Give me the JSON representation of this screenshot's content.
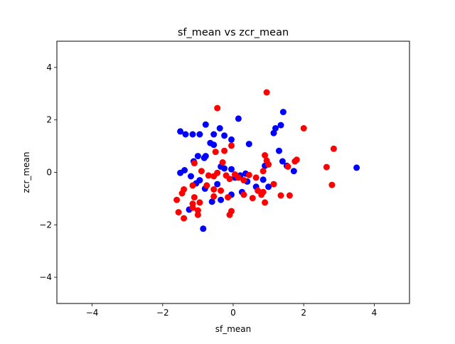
{
  "chart_data": {
    "type": "scatter",
    "title": "sf_mean vs zcr_mean",
    "xlabel": "sf_mean",
    "ylabel": "zcr_mean",
    "xlim": [
      -5,
      5
    ],
    "ylim": [
      -5,
      5
    ],
    "x_ticks": [
      -4,
      -2,
      0,
      2,
      4
    ],
    "y_ticks": [
      -4,
      -2,
      0,
      2,
      4
    ],
    "x_tick_labels": [
      "−4",
      "−2",
      "0",
      "2",
      "4"
    ],
    "y_tick_labels": [
      "−4",
      "−2",
      "0",
      "2",
      "4"
    ],
    "grid": false,
    "legend": "none",
    "series": [
      {
        "color": "#0000ff",
        "points": [
          [
            -1.5,
            1.56
          ],
          [
            -1.35,
            1.45
          ],
          [
            -1.15,
            1.45
          ],
          [
            -0.95,
            1.45
          ],
          [
            -0.78,
            1.82
          ],
          [
            -0.55,
            1.45
          ],
          [
            -0.38,
            1.68
          ],
          [
            -0.25,
            1.4
          ],
          [
            -0.05,
            1.25
          ],
          [
            0.15,
            2.05
          ],
          [
            0.45,
            1.08
          ],
          [
            -0.65,
            1.12
          ],
          [
            -0.55,
            1.05
          ],
          [
            -1.0,
            0.62
          ],
          [
            -0.78,
            0.62
          ],
          [
            -0.82,
            0.55
          ],
          [
            -1.12,
            0.42
          ],
          [
            -1.5,
            -0.02
          ],
          [
            -1.38,
            0.08
          ],
          [
            -1.2,
            -0.15
          ],
          [
            -0.35,
            0.22
          ],
          [
            -0.25,
            0.15
          ],
          [
            -0.05,
            0.12
          ],
          [
            0.2,
            -0.12
          ],
          [
            0.35,
            -0.05
          ],
          [
            0.4,
            -0.35
          ],
          [
            0.65,
            -0.55
          ],
          [
            0.85,
            -0.28
          ],
          [
            1.0,
            -0.55
          ],
          [
            1.15,
            1.5
          ],
          [
            1.2,
            1.68
          ],
          [
            1.35,
            1.8
          ],
          [
            1.42,
            2.3
          ],
          [
            1.3,
            0.82
          ],
          [
            1.4,
            0.42
          ],
          [
            1.52,
            0.25
          ],
          [
            1.72,
            0.05
          ],
          [
            0.9,
            0.25
          ],
          [
            -1.05,
            -0.42
          ],
          [
            -0.95,
            -0.3
          ],
          [
            -0.8,
            -0.62
          ],
          [
            -0.6,
            -1.12
          ],
          [
            -0.35,
            -1.05
          ],
          [
            -0.05,
            -0.85
          ],
          [
            0.25,
            -0.75
          ],
          [
            -1.25,
            -1.42
          ],
          [
            -0.85,
            -2.15
          ],
          [
            3.5,
            0.18
          ],
          [
            -0.45,
            -0.45
          ],
          [
            0.05,
            -0.2
          ]
        ]
      },
      {
        "color": "#ff0000",
        "points": [
          [
            -0.45,
            2.45
          ],
          [
            0.95,
            3.05
          ],
          [
            2.0,
            1.68
          ],
          [
            2.85,
            0.9
          ],
          [
            2.65,
            0.2
          ],
          [
            2.8,
            -0.48
          ],
          [
            1.75,
            0.42
          ],
          [
            1.8,
            0.48
          ],
          [
            1.55,
            0.22
          ],
          [
            1.0,
            0.3
          ],
          [
            0.9,
            0.65
          ],
          [
            0.95,
            0.45
          ],
          [
            0.85,
            0.05
          ],
          [
            -0.05,
            1.02
          ],
          [
            -0.25,
            0.82
          ],
          [
            -0.5,
            0.78
          ],
          [
            -0.3,
            0.38
          ],
          [
            -0.45,
            -0.02
          ],
          [
            -0.7,
            -0.12
          ],
          [
            -0.9,
            0.05
          ],
          [
            -1.1,
            0.35
          ],
          [
            -0.55,
            -0.15
          ],
          [
            -0.2,
            -0.12
          ],
          [
            -0.1,
            -0.25
          ],
          [
            0.05,
            -0.08
          ],
          [
            0.15,
            -0.2
          ],
          [
            0.3,
            -0.3
          ],
          [
            0.45,
            -0.1
          ],
          [
            0.65,
            -0.2
          ],
          [
            0.7,
            -0.7
          ],
          [
            0.8,
            -0.85
          ],
          [
            0.85,
            -0.75
          ],
          [
            1.15,
            -0.45
          ],
          [
            1.35,
            -0.88
          ],
          [
            1.6,
            -0.88
          ],
          [
            0.9,
            -1.15
          ],
          [
            0.3,
            -0.85
          ],
          [
            -0.15,
            -0.95
          ],
          [
            -0.35,
            -0.7
          ],
          [
            -0.55,
            -0.65
          ],
          [
            -0.75,
            -0.5
          ],
          [
            -1.15,
            -0.5
          ],
          [
            -1.4,
            -0.65
          ],
          [
            -1.45,
            -0.8
          ],
          [
            -1.6,
            -1.05
          ],
          [
            -1.1,
            -0.95
          ],
          [
            -1.15,
            -1.2
          ],
          [
            -1.15,
            -1.35
          ],
          [
            -0.95,
            -1.15
          ],
          [
            -1.0,
            -1.45
          ],
          [
            -1.0,
            -1.62
          ],
          [
            -1.55,
            -1.52
          ],
          [
            -1.4,
            -1.75
          ],
          [
            -0.05,
            -1.48
          ],
          [
            -0.1,
            -1.62
          ],
          [
            -0.55,
            -0.92
          ],
          [
            0.55,
            -0.98
          ]
        ]
      }
    ]
  }
}
